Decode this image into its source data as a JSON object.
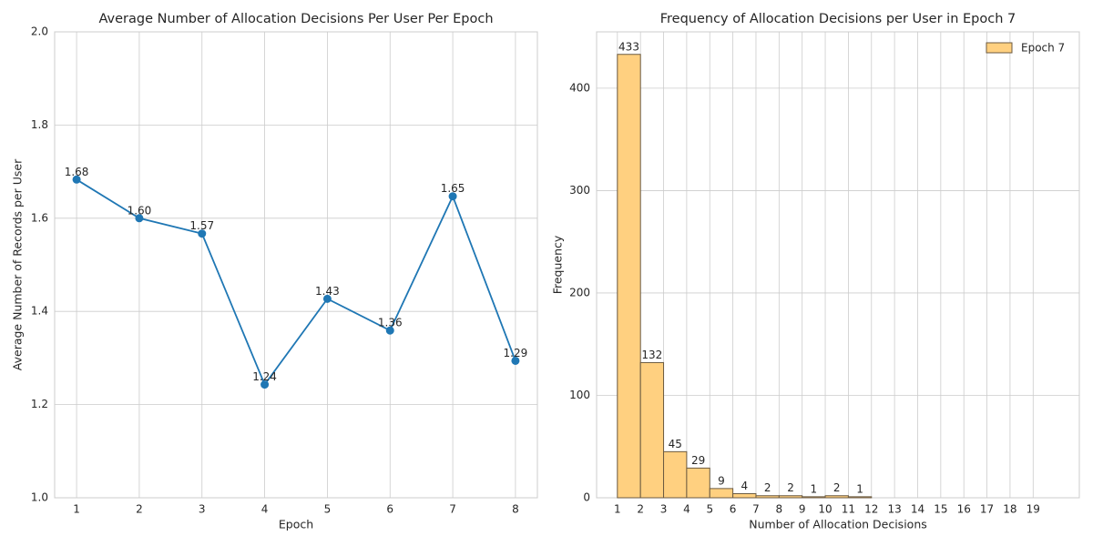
{
  "chart_data": [
    {
      "type": "line",
      "title": "Average Number of Allocation Decisions Per User Per Epoch",
      "xlabel": "Epoch",
      "ylabel": "Average Number of Records per User",
      "x": [
        1,
        2,
        3,
        4,
        5,
        6,
        7,
        8
      ],
      "series": [
        {
          "name": "Average",
          "color": "#1f77b4",
          "values": [
            1.683,
            1.6,
            1.567,
            1.243,
            1.427,
            1.359,
            1.647,
            1.294
          ],
          "value_labels": [
            "1.68",
            "1.60",
            "1.57",
            "1.24",
            "1.43",
            "1.36",
            "1.65",
            "1.29"
          ]
        }
      ],
      "xlim": [
        0.65,
        8.35
      ],
      "ylim": [
        1.0,
        2.0
      ],
      "xticks": [
        1,
        2,
        3,
        4,
        5,
        6,
        7,
        8
      ],
      "yticks": [
        {
          "value": 1.0,
          "label": "1.0"
        },
        1.2,
        1.4,
        1.6,
        1.8,
        {
          "value": 2.0,
          "label": "2.0"
        }
      ],
      "grid": true
    },
    {
      "type": "histogram",
      "title": "Frequency of Allocation Decisions per User in Epoch 7",
      "xlabel": "Number of Allocation Decisions",
      "ylabel": "Frequency",
      "bins": [
        1,
        2,
        3,
        4,
        5,
        6,
        7,
        8,
        9,
        10,
        11,
        12
      ],
      "series": [
        {
          "name": "Epoch 7",
          "color": "#ffd080",
          "values": [
            433,
            132,
            45,
            29,
            9,
            4,
            2,
            2,
            1,
            2,
            1
          ]
        }
      ],
      "xlim": [
        0.1,
        21.0
      ],
      "ylim": [
        0,
        455
      ],
      "xticks": [
        1,
        2,
        3,
        4,
        5,
        6,
        7,
        8,
        9,
        10,
        11,
        12,
        13,
        14,
        15,
        16,
        17,
        18,
        19
      ],
      "yticks": [
        0,
        100,
        200,
        300,
        400
      ],
      "grid": true,
      "legend": "upper right"
    }
  ]
}
